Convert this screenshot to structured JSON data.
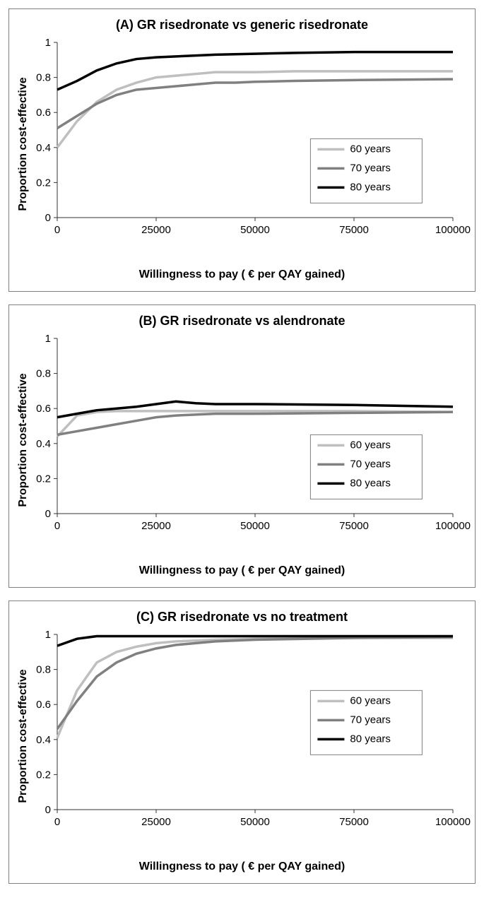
{
  "background_color": "#ffffff",
  "border_color": "#808080",
  "title_fontsize": 18,
  "label_fontsize": 16,
  "tick_fontsize": 15,
  "panels": [
    {
      "title": "(A) GR risedronate  vs generic risedronate",
      "ylabel": "Proportion cost-effective",
      "xlabel": "Willingness to pay ( € per QAY gained)",
      "xlim": [
        0,
        100000
      ],
      "ylim": [
        0,
        1
      ],
      "xticks": [
        0,
        25000,
        50000,
        75000,
        100000
      ],
      "yticks": [
        0,
        0.2,
        0.4,
        0.6,
        0.8,
        1
      ],
      "type": "line",
      "line_width": 3.5,
      "legend_position": "lower-right",
      "series": [
        {
          "label": "60 years",
          "color": "#bfbfbf",
          "x": [
            0,
            5000,
            10000,
            15000,
            20000,
            25000,
            30000,
            35000,
            40000,
            45000,
            50000,
            60000,
            75000,
            100000
          ],
          "y": [
            0.4,
            0.55,
            0.66,
            0.73,
            0.77,
            0.8,
            0.81,
            0.82,
            0.83,
            0.83,
            0.83,
            0.835,
            0.835,
            0.835
          ]
        },
        {
          "label": "70 years",
          "color": "#808080",
          "x": [
            0,
            5000,
            10000,
            15000,
            20000,
            25000,
            30000,
            35000,
            40000,
            45000,
            50000,
            60000,
            75000,
            100000
          ],
          "y": [
            0.51,
            0.58,
            0.65,
            0.7,
            0.73,
            0.74,
            0.75,
            0.76,
            0.77,
            0.77,
            0.775,
            0.78,
            0.785,
            0.79
          ]
        },
        {
          "label": "80 years",
          "color": "#000000",
          "x": [
            0,
            5000,
            10000,
            15000,
            20000,
            25000,
            30000,
            40000,
            50000,
            60000,
            75000,
            100000
          ],
          "y": [
            0.73,
            0.78,
            0.84,
            0.88,
            0.905,
            0.915,
            0.92,
            0.93,
            0.935,
            0.94,
            0.945,
            0.945
          ]
        }
      ]
    },
    {
      "title": "(B) GR risedronate  vs alendronate",
      "ylabel": "Proportion cost-effective",
      "xlabel": "Willingness to pay ( € per QAY gained)",
      "xlim": [
        0,
        100000
      ],
      "ylim": [
        0,
        1
      ],
      "xticks": [
        0,
        25000,
        50000,
        75000,
        100000
      ],
      "yticks": [
        0,
        0.2,
        0.4,
        0.6,
        0.8,
        1
      ],
      "type": "line",
      "line_width": 3.5,
      "legend_position": "lower-right",
      "series": [
        {
          "label": "60 years",
          "color": "#bfbfbf",
          "x": [
            0,
            5000,
            10000,
            15000,
            20000,
            30000,
            40000,
            50000,
            75000,
            100000
          ],
          "y": [
            0.44,
            0.56,
            0.58,
            0.585,
            0.585,
            0.585,
            0.585,
            0.585,
            0.585,
            0.58
          ]
        },
        {
          "label": "70 years",
          "color": "#808080",
          "x": [
            0,
            5000,
            10000,
            15000,
            20000,
            25000,
            30000,
            40000,
            50000,
            75000,
            100000
          ],
          "y": [
            0.45,
            0.47,
            0.49,
            0.51,
            0.53,
            0.55,
            0.56,
            0.57,
            0.57,
            0.575,
            0.58
          ]
        },
        {
          "label": "80 years",
          "color": "#000000",
          "x": [
            0,
            5000,
            10000,
            15000,
            20000,
            25000,
            30000,
            35000,
            40000,
            50000,
            75000,
            100000
          ],
          "y": [
            0.55,
            0.57,
            0.59,
            0.6,
            0.61,
            0.625,
            0.64,
            0.63,
            0.625,
            0.625,
            0.62,
            0.61
          ]
        }
      ]
    },
    {
      "title": "(C) GR risedronate  vs no treatment",
      "ylabel": "Proportion cost-effective",
      "xlabel": "Willingness to pay ( € per QAY gained)",
      "xlim": [
        0,
        100000
      ],
      "ylim": [
        0,
        1
      ],
      "xticks": [
        0,
        25000,
        50000,
        75000,
        100000
      ],
      "yticks": [
        0,
        0.2,
        0.4,
        0.6,
        0.8,
        1
      ],
      "type": "line",
      "line_width": 3.5,
      "legend_position": "middle-right",
      "series": [
        {
          "label": "60 years",
          "color": "#bfbfbf",
          "x": [
            0,
            5000,
            10000,
            15000,
            20000,
            25000,
            30000,
            40000,
            50000,
            75000,
            100000
          ],
          "y": [
            0.41,
            0.68,
            0.84,
            0.9,
            0.93,
            0.95,
            0.96,
            0.97,
            0.975,
            0.98,
            0.98
          ]
        },
        {
          "label": "70 years",
          "color": "#808080",
          "x": [
            0,
            5000,
            10000,
            15000,
            20000,
            25000,
            30000,
            35000,
            40000,
            50000,
            75000,
            100000
          ],
          "y": [
            0.46,
            0.62,
            0.76,
            0.84,
            0.89,
            0.92,
            0.94,
            0.95,
            0.96,
            0.97,
            0.98,
            0.985
          ]
        },
        {
          "label": "80 years",
          "color": "#000000",
          "x": [
            0,
            5000,
            10000,
            15000,
            20000,
            30000,
            50000,
            75000,
            100000
          ],
          "y": [
            0.935,
            0.975,
            0.99,
            0.99,
            0.99,
            0.99,
            0.99,
            0.99,
            0.99
          ]
        }
      ]
    }
  ]
}
